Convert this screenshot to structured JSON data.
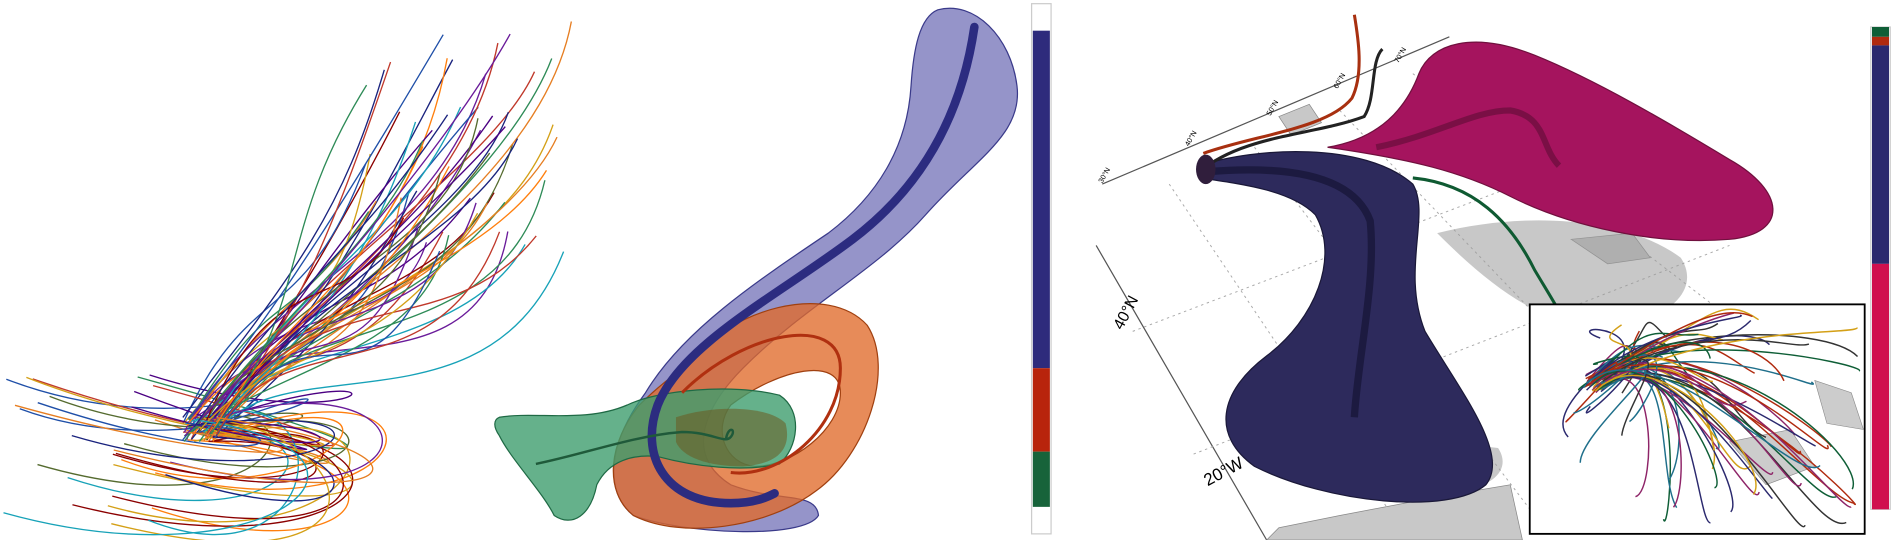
{
  "map_labels": {
    "lat_left": "40°N",
    "lon_bottom": "20°W",
    "top_ticks": [
      "30°N",
      "40°N",
      "50°N",
      "60°N",
      "70°N"
    ]
  }
}
